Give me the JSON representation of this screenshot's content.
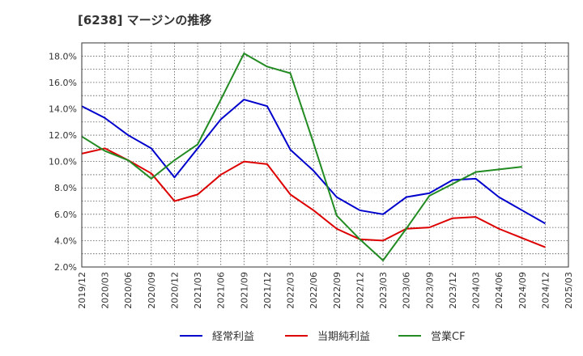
{
  "title": "[6238]  マージンの推移",
  "chart_data": {
    "type": "line",
    "title": "[6238]  マージンの推移",
    "x": [
      "2019/12",
      "2020/03",
      "2020/06",
      "2020/09",
      "2020/12",
      "2021/03",
      "2021/06",
      "2021/09",
      "2021/12",
      "2022/03",
      "2022/06",
      "2022/09",
      "2022/12",
      "2023/03",
      "2023/06",
      "2023/09",
      "2023/12",
      "2024/03",
      "2024/06",
      "2024/09",
      "2024/12",
      "2025/03"
    ],
    "ylim": [
      2.0,
      19.0
    ],
    "yticks": [
      2.0,
      4.0,
      6.0,
      8.0,
      10.0,
      12.0,
      14.0,
      16.0,
      18.0
    ],
    "ytick_labels": [
      "2.0%",
      "4.0%",
      "6.0%",
      "8.0%",
      "10.0%",
      "12.0%",
      "14.0%",
      "16.0%",
      "18.0%"
    ],
    "grid": true,
    "legend_position": "bottom",
    "series": [
      {
        "name": "経常利益",
        "color": "#0000cc",
        "values": [
          14.2,
          13.3,
          12.0,
          11.0,
          8.8,
          11.0,
          13.2,
          14.7,
          14.2,
          10.9,
          9.3,
          7.3,
          6.3,
          6.0,
          7.3,
          7.6,
          8.6,
          8.7,
          7.3,
          6.3,
          5.3,
          null
        ]
      },
      {
        "name": "当期純利益",
        "color": "#dd0000",
        "values": [
          10.6,
          11.0,
          10.1,
          9.1,
          7.0,
          7.5,
          9.0,
          10.0,
          9.8,
          7.5,
          6.3,
          4.9,
          4.1,
          4.0,
          4.9,
          5.0,
          5.7,
          5.8,
          4.9,
          4.2,
          3.5,
          null
        ]
      },
      {
        "name": "営業CF",
        "color": "#228b22",
        "values": [
          11.9,
          10.8,
          10.1,
          8.7,
          10.1,
          11.3,
          14.7,
          18.2,
          17.2,
          16.7,
          11.4,
          5.9,
          4.1,
          2.5,
          4.9,
          7.4,
          8.3,
          9.2,
          9.4,
          9.6,
          null,
          null
        ]
      }
    ]
  }
}
